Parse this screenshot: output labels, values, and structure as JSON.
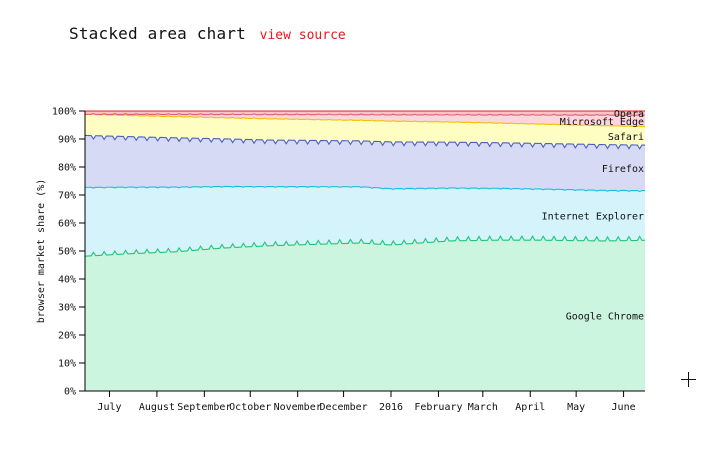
{
  "page": {
    "title": "Stacked area chart",
    "source_link_label": "view source"
  },
  "chart_data": {
    "type": "area",
    "stacked": true,
    "ylabel": "browser market share (%)",
    "xlabel": "",
    "ylim": [
      0,
      100
    ],
    "yticks": [
      "0%",
      "10%",
      "20%",
      "30%",
      "40%",
      "50%",
      "60%",
      "70%",
      "80%",
      "90%",
      "100%"
    ],
    "x_tick_labels": [
      "July",
      "August",
      "September",
      "October",
      "November",
      "December",
      "2016",
      "February",
      "March",
      "April",
      "May",
      "June"
    ],
    "x_range_days": [
      0,
      366
    ],
    "x_tick_days": [
      16,
      47,
      78,
      108,
      139,
      169,
      200,
      231,
      260,
      291,
      321,
      352
    ],
    "weekly_dip_period_days": 7,
    "series": [
      {
        "name": "Google Chrome",
        "color": "#2ecc71",
        "fill": "#ccf5e0",
        "stroke": "#22c47a",
        "anchors_day": [
          0,
          30,
          60,
          90,
          120,
          150,
          180,
          200,
          240,
          270,
          300,
          340,
          366
        ],
        "anchors_value": [
          48,
          49,
          49.5,
          51,
          51.5,
          52,
          52.5,
          50.5,
          52.5,
          53,
          53,
          52.5,
          53
        ],
        "weekly_dip": 0.3
      },
      {
        "name": "Internet Explorer",
        "color": "#17becf",
        "fill": "#d4f3fb",
        "stroke": "#18c0d8",
        "anchors_day": [
          0,
          60,
          120,
          180,
          240,
          300,
          366
        ],
        "anchors_value": [
          24.5,
          23,
          21,
          20,
          18.5,
          18,
          17.5
        ],
        "weekly_dip": 2.2
      },
      {
        "name": "Firefox",
        "color": "#4a5fc1",
        "fill": "#d6daf5",
        "stroke": "#4a5fc1",
        "anchors_day": [
          0,
          120,
          240,
          366
        ],
        "anchors_value": [
          18.5,
          16.5,
          16,
          16
        ],
        "weekly_dip": 1.5
      },
      {
        "name": "Safari",
        "color": "#e6c619",
        "fill": "#fefdc2",
        "stroke": "#f2c200",
        "anchors_day": [
          0,
          120,
          240,
          366
        ],
        "anchors_value": [
          7.5,
          7.5,
          7,
          6.5
        ],
        "weekly_dip": -1.2
      },
      {
        "name": "Microsoft Edge",
        "color": "#f07fa0",
        "fill": "#fbd6dc",
        "stroke": "#e0607a",
        "anchors_day": [
          0,
          35,
          120,
          240,
          366
        ],
        "anchors_value": [
          0,
          0.5,
          1.5,
          2.5,
          4
        ],
        "weekly_dip": 0
      },
      {
        "name": "Opera",
        "color": "#d62728",
        "fill": "#f7c5c5",
        "stroke": "#d62728",
        "anchors_day": [
          0,
          366
        ],
        "anchors_value": [
          1.2,
          1.5
        ],
        "weekly_dip": 0.3
      }
    ]
  }
}
